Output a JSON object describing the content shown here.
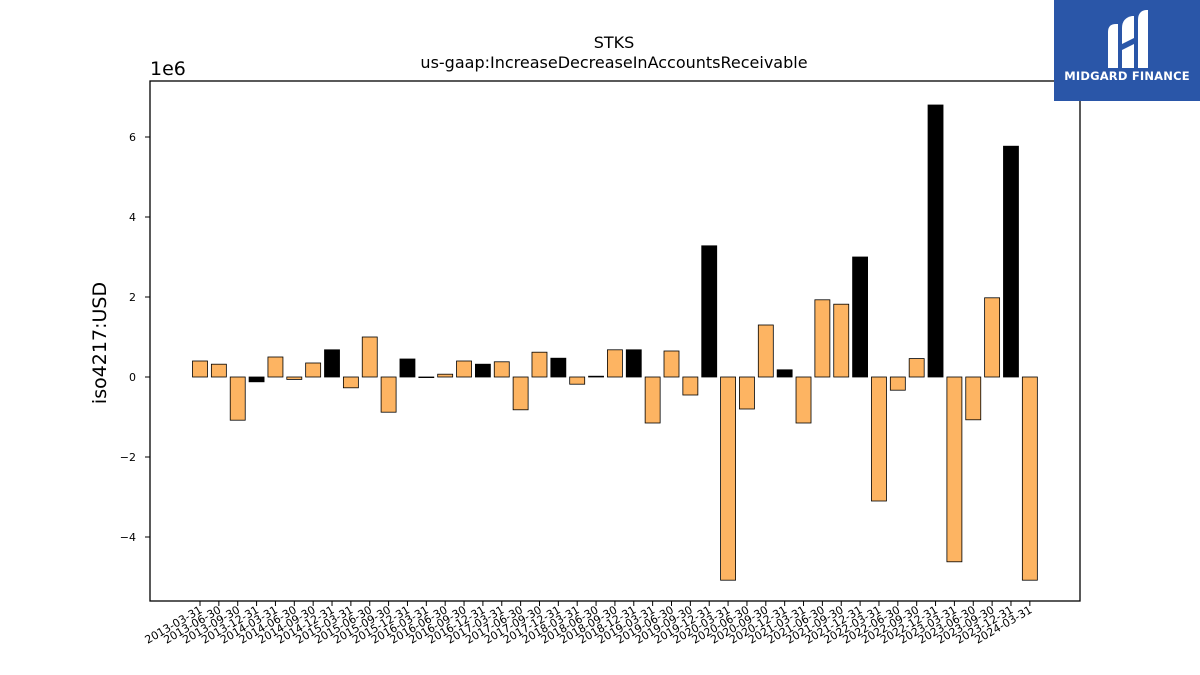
{
  "brand": {
    "name": "MIDGARD FINANCE",
    "background": "#2a56a8",
    "icon": "midgard-logo-icon"
  },
  "chart_data": {
    "type": "bar",
    "title": "STKS",
    "subtitle": "us-gaap:IncreaseDecreaseInAccountsReceivable",
    "xlabel": "",
    "ylabel": "iso4217:USD",
    "scale_label": "1e6",
    "ylim": [
      -5.6,
      7.4
    ],
    "yticks": [
      -4,
      -2,
      0,
      2,
      4,
      6
    ],
    "ytick_labels": [
      "−4",
      "−2",
      "0",
      "2",
      "4",
      "6"
    ],
    "grid": false,
    "legend": "none",
    "colors": {
      "quarterly": "#fdb462",
      "annual": "#000000",
      "edge": "#000000"
    },
    "categories": [
      "2013-03-31",
      "2013-06-30",
      "2013-09-30",
      "2013-12-31",
      "2014-03-31",
      "2014-06-30",
      "2014-09-30",
      "2014-12-31",
      "2015-03-31",
      "2015-06-30",
      "2015-09-30",
      "2015-12-31",
      "2016-03-31",
      "2016-06-30",
      "2016-09-30",
      "2016-12-31",
      "2017-03-31",
      "2017-06-30",
      "2017-09-30",
      "2017-12-31",
      "2018-03-31",
      "2018-06-30",
      "2018-09-30",
      "2018-12-31",
      "2019-03-31",
      "2019-06-30",
      "2019-09-30",
      "2019-12-31",
      "2020-03-31",
      "2020-06-30",
      "2020-09-30",
      "2020-12-31",
      "2021-03-31",
      "2021-06-30",
      "2021-09-30",
      "2021-12-31",
      "2022-03-31",
      "2022-06-30",
      "2022-09-30",
      "2022-12-31",
      "2023-03-31",
      "2023-06-30",
      "2023-09-30",
      "2023-12-31",
      "2024-03-31"
    ],
    "values": [
      0.4,
      0.32,
      -1.08,
      -0.12,
      0.5,
      -0.06,
      0.35,
      0.68,
      -0.27,
      1.0,
      -0.88,
      0.45,
      -0.01,
      0.07,
      0.4,
      0.32,
      0.38,
      -0.82,
      0.62,
      0.47,
      -0.18,
      0.02,
      0.68,
      0.68,
      -1.15,
      0.65,
      -0.45,
      3.28,
      -5.08,
      -0.8,
      1.3,
      0.18,
      -1.15,
      1.93,
      1.82,
      3.0,
      -3.1,
      -0.33,
      0.46,
      6.8,
      -4.62,
      -1.07,
      1.98,
      5.77,
      -5.08
    ],
    "bar_types": [
      "q",
      "q",
      "q",
      "a",
      "q",
      "q",
      "q",
      "a",
      "q",
      "q",
      "q",
      "a",
      "q",
      "q",
      "q",
      "a",
      "q",
      "q",
      "q",
      "a",
      "q",
      "q",
      "q",
      "a",
      "q",
      "q",
      "q",
      "a",
      "q",
      "q",
      "q",
      "a",
      "q",
      "q",
      "q",
      "a",
      "q",
      "q",
      "q",
      "a",
      "q",
      "q",
      "q",
      "a",
      "q"
    ]
  }
}
